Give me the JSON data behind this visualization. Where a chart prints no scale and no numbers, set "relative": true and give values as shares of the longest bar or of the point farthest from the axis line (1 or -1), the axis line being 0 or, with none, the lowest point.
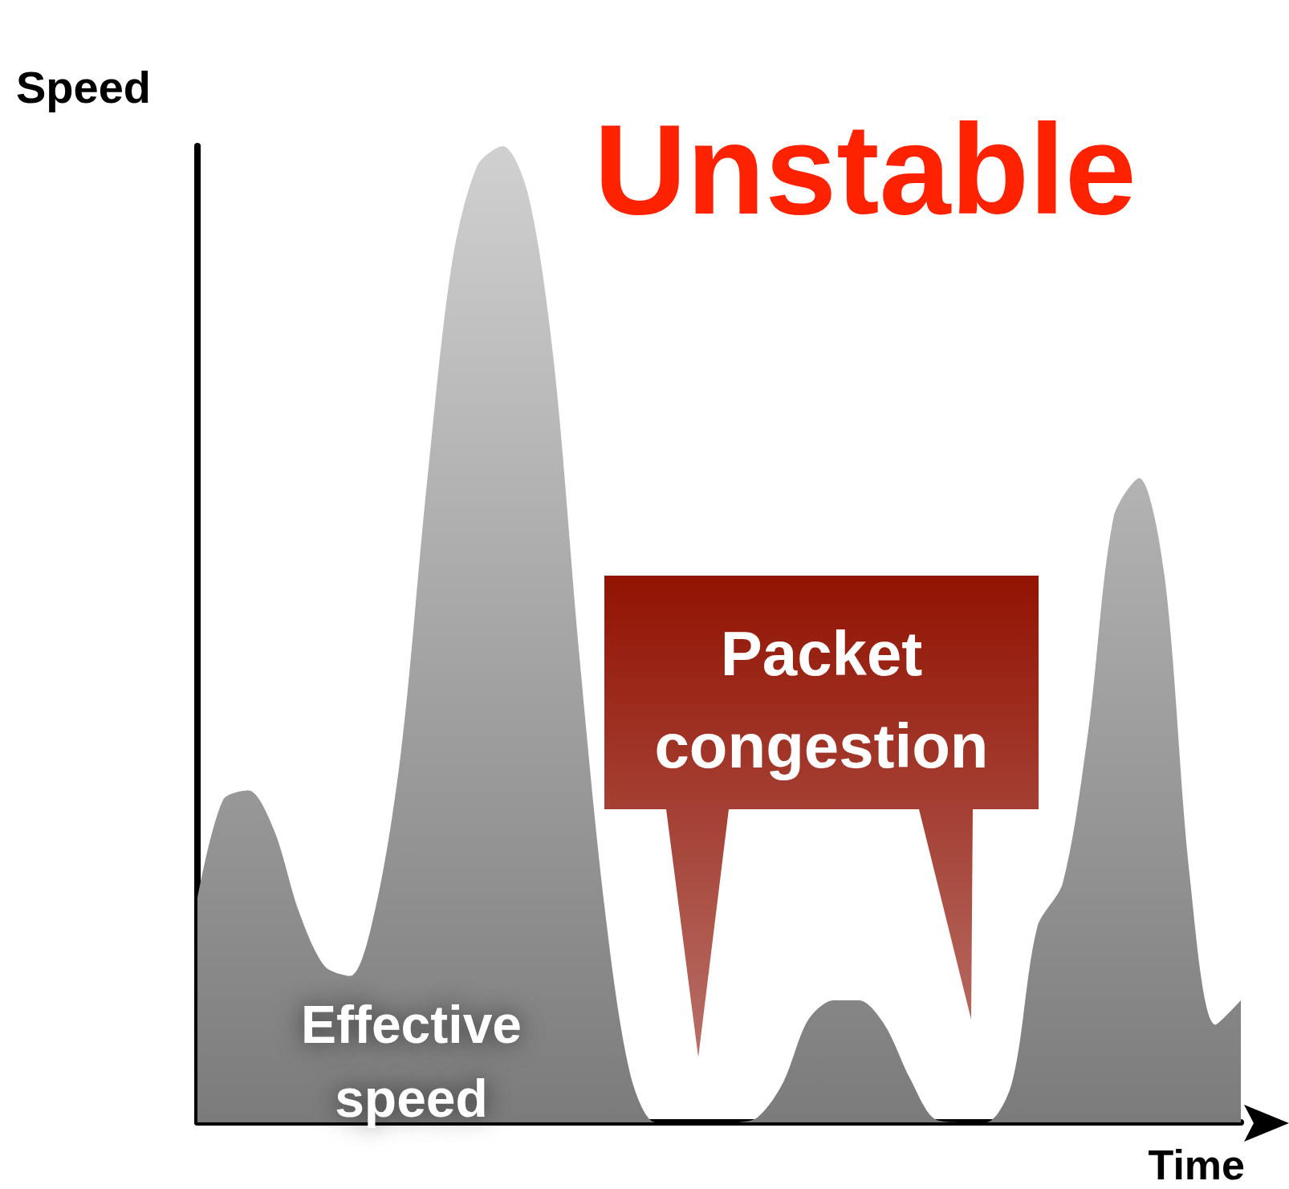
{
  "chart_data": {
    "type": "area",
    "title": "Unstable",
    "xlabel": "Time",
    "ylabel": "Speed",
    "relative": true,
    "grid": false,
    "marker": "none",
    "categories": [
      null,
      null,
      null,
      null,
      null,
      null,
      null,
      null,
      null,
      null,
      null,
      null,
      null,
      null,
      null,
      null,
      null,
      null,
      null,
      null,
      null,
      null,
      null,
      null,
      null,
      null,
      null,
      null,
      null,
      null,
      null,
      null,
      null,
      null,
      null,
      null,
      null,
      null,
      null,
      null,
      null,
      null
    ],
    "series": [
      {
        "color": "#b0b0b0",
        "values": [
          0.23,
          0.33,
          0.34,
          0.3,
          0.215,
          0.16,
          0.15,
          0.22,
          0.38,
          0.65,
          0.88,
          0.98,
          1.0,
          0.95,
          0.78,
          0.48,
          0.22,
          0.05,
          0.0,
          0,
          0,
          0,
          0.005,
          0.04,
          0.105,
          0.125,
          0.125,
          0.1,
          0.045,
          0.003,
          0,
          0,
          0.04,
          0.2,
          0.245,
          0.4,
          0.62,
          0.66,
          0.56,
          0.25,
          0.1,
          0.125
        ]
      }
    ],
    "annotations": [
      "Effective speed",
      "Packet congestion"
    ]
  }
}
